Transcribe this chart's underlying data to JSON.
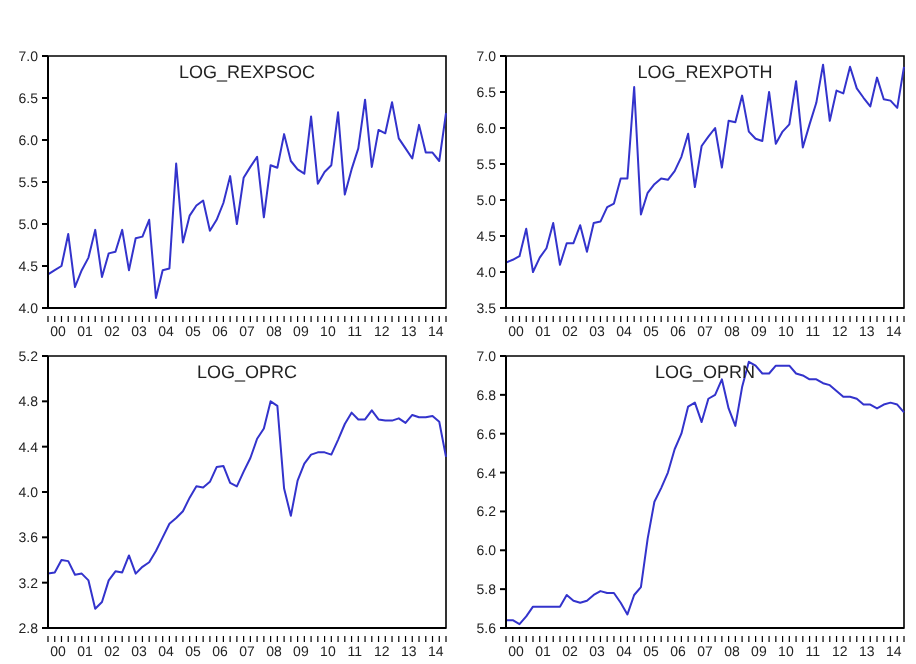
{
  "chart_data": [
    {
      "type": "line",
      "title": "LOG_REXPSOC",
      "categories": [
        null,
        "00",
        null,
        null,
        null,
        "01",
        null,
        null,
        null,
        "02",
        null,
        null,
        null,
        "03",
        null,
        null,
        null,
        "04",
        null,
        null,
        null,
        "05",
        null,
        null,
        null,
        "06",
        null,
        null,
        null,
        "07",
        null,
        null,
        null,
        "08",
        null,
        null,
        null,
        "09",
        null,
        null,
        null,
        "10",
        null,
        null,
        null,
        "11",
        null,
        null,
        null,
        "12",
        null,
        null,
        null,
        "13",
        null,
        null,
        null,
        "14",
        null,
        null
      ],
      "series": [
        {
          "color": "#3333cc",
          "values": [
            4.4,
            4.45,
            4.5,
            4.88,
            4.25,
            4.45,
            4.6,
            4.93,
            4.37,
            4.65,
            4.67,
            4.93,
            4.45,
            4.83,
            4.85,
            5.05,
            4.12,
            4.45,
            4.47,
            5.72,
            4.78,
            5.1,
            5.22,
            5.28,
            4.92,
            5.05,
            5.25,
            5.57,
            5.0,
            5.55,
            5.68,
            5.8,
            5.08,
            5.7,
            5.67,
            6.07,
            5.75,
            5.65,
            5.6,
            6.28,
            5.48,
            5.62,
            5.7,
            6.33,
            5.35,
            5.65,
            5.9,
            6.48,
            5.68,
            6.12,
            6.08,
            6.45,
            6.02,
            5.9,
            5.78,
            6.18,
            5.85,
            5.85,
            5.75,
            6.32
          ]
        }
      ],
      "ylim": [
        4.0,
        7.0
      ],
      "yticks": [
        {
          "value": 4,
          "label": "4.0"
        },
        4.5,
        {
          "value": 5,
          "label": "5.0"
        },
        5.5,
        {
          "value": 6,
          "label": "6.0"
        },
        6.5,
        {
          "value": 7,
          "label": "7.0"
        }
      ],
      "grid": false,
      "legend": false
    },
    {
      "type": "line",
      "title": "LOG_REXPOTH",
      "categories": [
        null,
        "00",
        null,
        null,
        null,
        "01",
        null,
        null,
        null,
        "02",
        null,
        null,
        null,
        "03",
        null,
        null,
        null,
        "04",
        null,
        null,
        null,
        "05",
        null,
        null,
        null,
        "06",
        null,
        null,
        null,
        "07",
        null,
        null,
        null,
        "08",
        null,
        null,
        null,
        "09",
        null,
        null,
        null,
        "10",
        null,
        null,
        null,
        "11",
        null,
        null,
        null,
        "12",
        null,
        null,
        null,
        "13",
        null,
        null,
        null,
        "14",
        null,
        null
      ],
      "series": [
        {
          "color": "#3333cc",
          "values": [
            4.13,
            4.17,
            4.22,
            4.6,
            4.0,
            4.2,
            4.33,
            4.68,
            4.1,
            4.4,
            4.4,
            4.65,
            4.28,
            4.68,
            4.7,
            4.9,
            4.95,
            5.3,
            5.3,
            6.57,
            4.8,
            5.1,
            5.22,
            5.3,
            5.28,
            5.4,
            5.6,
            5.92,
            5.18,
            5.75,
            5.88,
            6.0,
            5.45,
            6.1,
            6.08,
            6.45,
            5.95,
            5.85,
            5.82,
            6.5,
            5.78,
            5.95,
            6.05,
            6.65,
            5.73,
            6.05,
            6.35,
            6.88,
            6.1,
            6.52,
            6.48,
            6.85,
            6.55,
            6.42,
            6.3,
            6.7,
            6.4,
            6.38,
            6.28,
            6.85
          ]
        }
      ],
      "ylim": [
        3.5,
        7.0
      ],
      "yticks": [
        3.5,
        {
          "value": 4,
          "label": "4.0"
        },
        4.5,
        {
          "value": 5,
          "label": "5.0"
        },
        5.5,
        {
          "value": 6,
          "label": "6.0"
        },
        6.5,
        {
          "value": 7,
          "label": "7.0"
        }
      ],
      "grid": false,
      "legend": false
    },
    {
      "type": "line",
      "title": "LOG_OPRC",
      "categories": [
        null,
        "00",
        null,
        null,
        null,
        "01",
        null,
        null,
        null,
        "02",
        null,
        null,
        null,
        "03",
        null,
        null,
        null,
        "04",
        null,
        null,
        null,
        "05",
        null,
        null,
        null,
        "06",
        null,
        null,
        null,
        "07",
        null,
        null,
        null,
        "08",
        null,
        null,
        null,
        "09",
        null,
        null,
        null,
        "10",
        null,
        null,
        null,
        "11",
        null,
        null,
        null,
        "12",
        null,
        null,
        null,
        "13",
        null,
        null,
        null,
        "14",
        null,
        null
      ],
      "series": [
        {
          "color": "#3333cc",
          "values": [
            3.28,
            3.29,
            3.4,
            3.39,
            3.27,
            3.28,
            3.22,
            2.97,
            3.03,
            3.22,
            3.3,
            3.29,
            3.44,
            3.28,
            3.34,
            3.38,
            3.48,
            3.6,
            3.72,
            3.77,
            3.83,
            3.95,
            4.05,
            4.04,
            4.09,
            4.22,
            4.23,
            4.08,
            4.05,
            4.18,
            4.3,
            4.47,
            4.56,
            4.8,
            4.76,
            4.03,
            3.79,
            4.1,
            4.25,
            4.33,
            4.35,
            4.35,
            4.33,
            4.46,
            4.6,
            4.7,
            4.64,
            4.64,
            4.72,
            4.64,
            4.63,
            4.63,
            4.65,
            4.61,
            4.68,
            4.66,
            4.66,
            4.67,
            4.62,
            4.31
          ]
        }
      ],
      "ylim": [
        2.8,
        5.2
      ],
      "yticks": [
        2.8,
        3.2,
        3.6,
        {
          "value": 4,
          "label": "4.0"
        },
        4.4,
        4.8,
        5.2
      ],
      "grid": false,
      "legend": false
    },
    {
      "type": "line",
      "title": "LOG_OPRN",
      "categories": [
        null,
        "00",
        null,
        null,
        null,
        "01",
        null,
        null,
        null,
        "02",
        null,
        null,
        null,
        "03",
        null,
        null,
        null,
        "04",
        null,
        null,
        null,
        "05",
        null,
        null,
        null,
        "06",
        null,
        null,
        null,
        "07",
        null,
        null,
        null,
        "08",
        null,
        null,
        null,
        "09",
        null,
        null,
        null,
        "10",
        null,
        null,
        null,
        "11",
        null,
        null,
        null,
        "12",
        null,
        null,
        null,
        "13",
        null,
        null,
        null,
        "14",
        null,
        null
      ],
      "series": [
        {
          "color": "#3333cc",
          "values": [
            5.64,
            5.64,
            5.62,
            5.66,
            5.71,
            5.71,
            5.71,
            5.71,
            5.71,
            5.77,
            5.74,
            5.73,
            5.74,
            5.77,
            5.79,
            5.78,
            5.78,
            5.73,
            5.67,
            5.77,
            5.81,
            6.06,
            6.25,
            6.32,
            6.4,
            6.52,
            6.6,
            6.74,
            6.76,
            6.66,
            6.78,
            6.8,
            6.88,
            6.73,
            6.64,
            6.84,
            6.97,
            6.95,
            6.91,
            6.91,
            6.95,
            6.95,
            6.95,
            6.91,
            6.9,
            6.88,
            6.88,
            6.86,
            6.85,
            6.82,
            6.79,
            6.79,
            6.78,
            6.75,
            6.75,
            6.73,
            6.75,
            6.76,
            6.75,
            6.71
          ]
        }
      ],
      "ylim": [
        5.6,
        7.0
      ],
      "yticks": [
        5.6,
        5.8,
        {
          "value": 6,
          "label": "6.0"
        },
        6.2,
        6.4,
        6.6,
        6.8,
        {
          "value": 7,
          "label": "7.0"
        }
      ],
      "grid": false,
      "legend": false
    }
  ]
}
